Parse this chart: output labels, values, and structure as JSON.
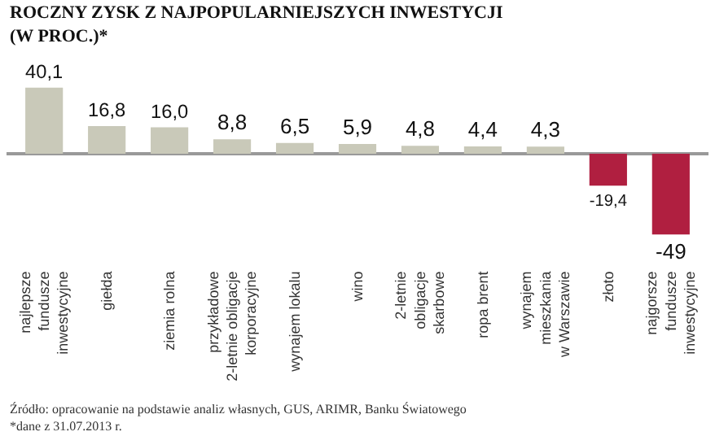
{
  "chart_data": {
    "type": "bar",
    "title": "ROCZNY ZYSK Z NAJPOPULARNIEJSZYCH INWESTYCJI",
    "subtitle": "(W PROC.)*",
    "categories": [
      "najlepsze\nfundusze\ninwestycyjne",
      "giełda",
      "ziemia rolna",
      "przykładowe\n2-letnie obligacje\nkorporacyjne",
      "wynajem lokalu",
      "wino",
      "2-letnie\nobligacje\nskarbowe",
      "ropa brent",
      "wynajem\nmieszkania\nw Warszawie",
      "złoto",
      "najgorsze\nfundusze\ninwestycyjne"
    ],
    "values": [
      40.1,
      16.8,
      16.0,
      8.8,
      6.5,
      5.9,
      4.8,
      4.4,
      4.3,
      -19.4,
      -49
    ],
    "value_labels": [
      "40,1",
      "16,8",
      "16,0",
      "8,8",
      "6,5",
      "5,9",
      "4,8",
      "4,4",
      "4,3",
      "-19,4",
      "-49"
    ],
    "colors": [
      "#c9c9b9",
      "#c9c9b9",
      "#c9c9b9",
      "#c9c9b9",
      "#c9c9b9",
      "#c9c9b9",
      "#c9c9b9",
      "#c9c9b9",
      "#c9c9b9",
      "#b01f40",
      "#b01f40"
    ],
    "annotations": [
      "Źródło: opracowanie na podstawie analiz własnych, GUS, ARIMR, Banku Światowego",
      "*dane z 31.07.2013 r."
    ]
  }
}
